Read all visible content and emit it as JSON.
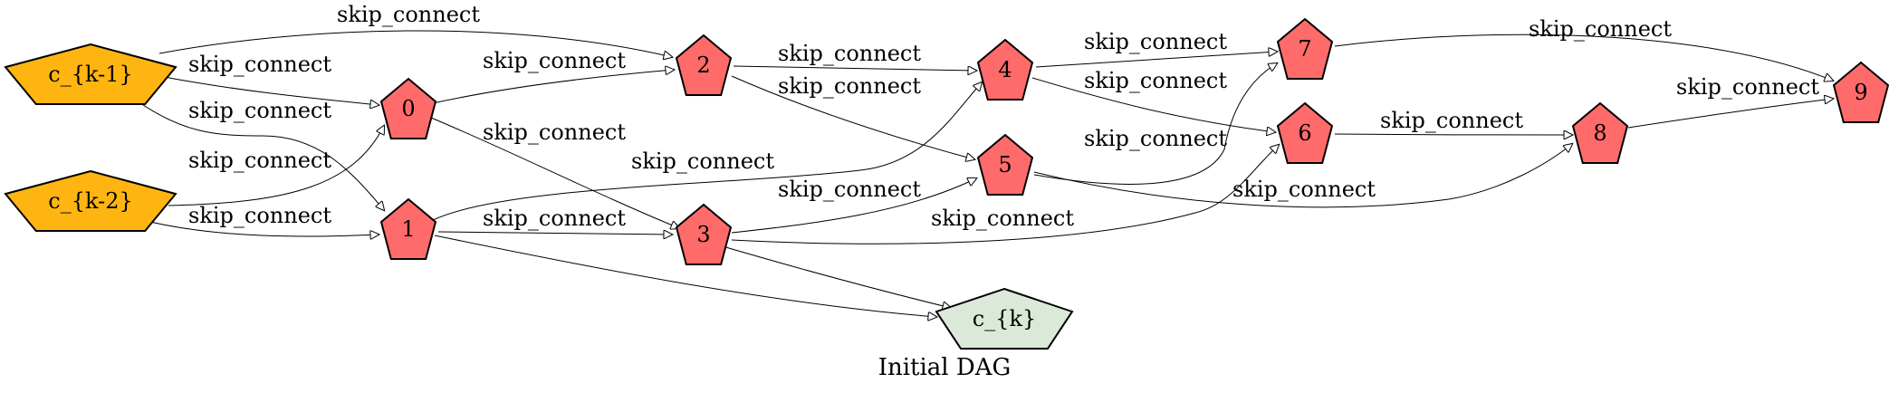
{
  "diagram": {
    "caption": "Initial DAG",
    "colors": {
      "input_node": "#ffb511",
      "op_node": "#ff6b6b",
      "output_node": "#dbead8",
      "edge": "#000000"
    },
    "nodes": [
      {
        "id": "ck1",
        "label": "c_{k-1}",
        "kind": "input"
      },
      {
        "id": "ck2",
        "label": "c_{k-2}",
        "kind": "input"
      },
      {
        "id": "n0",
        "label": "0",
        "kind": "op"
      },
      {
        "id": "n1",
        "label": "1",
        "kind": "op"
      },
      {
        "id": "n2",
        "label": "2",
        "kind": "op"
      },
      {
        "id": "n3",
        "label": "3",
        "kind": "op"
      },
      {
        "id": "n4",
        "label": "4",
        "kind": "op"
      },
      {
        "id": "n5",
        "label": "5",
        "kind": "op"
      },
      {
        "id": "n6",
        "label": "6",
        "kind": "op"
      },
      {
        "id": "n7",
        "label": "7",
        "kind": "op"
      },
      {
        "id": "n8",
        "label": "8",
        "kind": "op"
      },
      {
        "id": "n9",
        "label": "9",
        "kind": "op"
      },
      {
        "id": "ck",
        "label": "c_{k}",
        "kind": "output"
      }
    ],
    "edges": [
      {
        "from": "ck1",
        "to": "n2",
        "label": "skip_connect"
      },
      {
        "from": "ck1",
        "to": "n0",
        "label": "skip_connect"
      },
      {
        "from": "ck1",
        "to": "n1",
        "label": "skip_connect"
      },
      {
        "from": "ck2",
        "to": "n0",
        "label": "skip_connect"
      },
      {
        "from": "ck2",
        "to": "n1",
        "label": "skip_connect"
      },
      {
        "from": "n0",
        "to": "n2",
        "label": "skip_connect"
      },
      {
        "from": "n0",
        "to": "n3",
        "label": "skip_connect"
      },
      {
        "from": "n1",
        "to": "n4",
        "label": "skip_connect"
      },
      {
        "from": "n1",
        "to": "n3",
        "label": "skip_connect"
      },
      {
        "from": "n1",
        "to": "ck",
        "label": ""
      },
      {
        "from": "n2",
        "to": "n4",
        "label": "skip_connect"
      },
      {
        "from": "n2",
        "to": "n5",
        "label": "skip_connect"
      },
      {
        "from": "n3",
        "to": "n5",
        "label": "skip_connect"
      },
      {
        "from": "n3",
        "to": "n6",
        "label": "skip_connect"
      },
      {
        "from": "n3",
        "to": "ck",
        "label": ""
      },
      {
        "from": "n4",
        "to": "n7",
        "label": "skip_connect"
      },
      {
        "from": "n4",
        "to": "n6",
        "label": "skip_connect"
      },
      {
        "from": "n5",
        "to": "n7",
        "label": "skip_connect"
      },
      {
        "from": "n5",
        "to": "n8",
        "label": "skip_connect"
      },
      {
        "from": "n6",
        "to": "n8",
        "label": "skip_connect"
      },
      {
        "from": "n7",
        "to": "n9",
        "label": "skip_connect"
      },
      {
        "from": "n8",
        "to": "n9",
        "label": "skip_connect"
      }
    ]
  }
}
